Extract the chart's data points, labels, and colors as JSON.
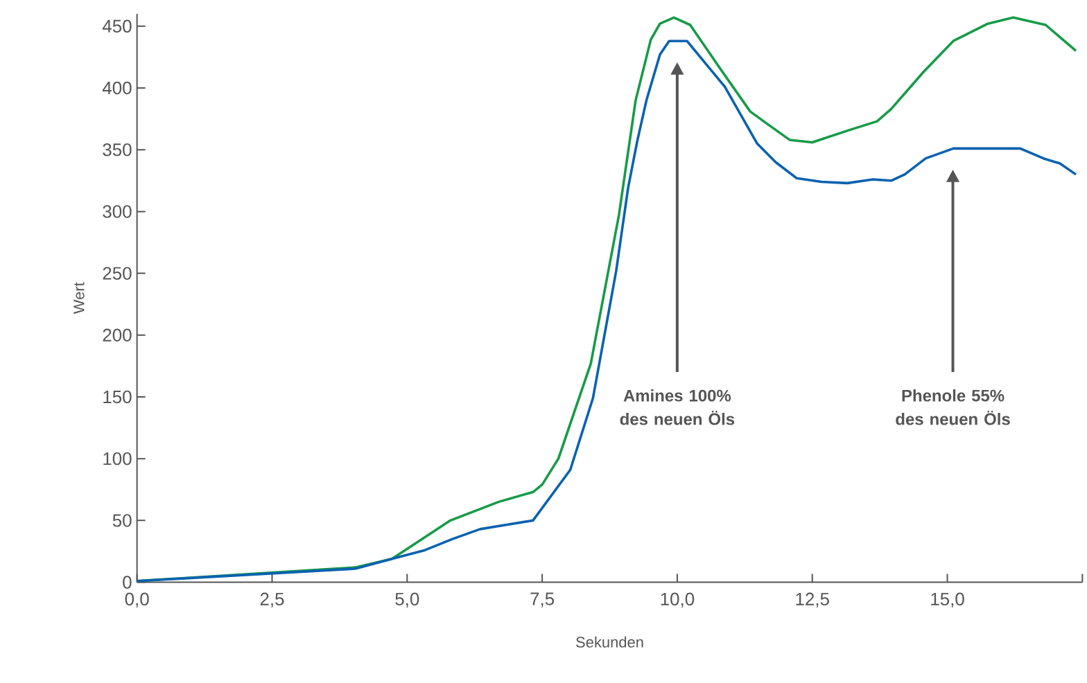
{
  "chart_data": {
    "type": "line",
    "xlabel": "Sekunden",
    "ylabel": "Wert",
    "xlim": [
      0,
      17.5
    ],
    "ylim": [
      0,
      460
    ],
    "xticks": [
      {
        "value": 0,
        "label": "0,0"
      },
      {
        "value": 2.5,
        "label": "2,5"
      },
      {
        "value": 5,
        "label": "5,0"
      },
      {
        "value": 7.5,
        "label": "7,5"
      },
      {
        "value": 10,
        "label": "10,0"
      },
      {
        "value": 12.5,
        "label": "12,5"
      },
      {
        "value": 15,
        "label": "15,0"
      },
      {
        "value": 17.5,
        "label": null
      }
    ],
    "yticks": [
      0,
      50,
      100,
      150,
      200,
      250,
      300,
      350,
      400,
      450
    ],
    "series": [
      {
        "color": "#169b48",
        "x": [
          0,
          4.04,
          4.72,
          5.8,
          6.69,
          7.33,
          7.5,
          7.8,
          8.4,
          8.92,
          9.23,
          9.51,
          9.68,
          9.94,
          10.24,
          10.79,
          11.35,
          11.6,
          12.08,
          12.5,
          13.19,
          13.7,
          13.96,
          14.56,
          15.11,
          15.75,
          16.22,
          16.82,
          17.38
        ],
        "values": [
          1,
          12,
          19,
          50,
          65,
          73,
          79,
          100,
          177,
          297,
          390,
          439,
          452,
          457,
          451,
          416,
          381,
          373,
          358,
          356,
          366,
          373,
          383,
          413,
          438,
          452,
          457,
          451,
          430
        ]
      },
      {
        "color": "#0a62b0",
        "x": [
          0,
          4.04,
          4.72,
          5.33,
          5.84,
          6.35,
          7.33,
          8.02,
          8.44,
          8.87,
          9.09,
          9.26,
          9.43,
          9.68,
          9.85,
          10.18,
          10.88,
          11.48,
          11.82,
          12.21,
          12.67,
          13.15,
          13.62,
          13.96,
          14.21,
          14.6,
          15.11,
          16.35,
          16.78,
          17.08,
          17.38
        ],
        "values": [
          1,
          11,
          19,
          26,
          35,
          43,
          50,
          91,
          149,
          252,
          319,
          357,
          390,
          427,
          438,
          438,
          401,
          355,
          340,
          327,
          324,
          323,
          326,
          325,
          330,
          343,
          351,
          351,
          343,
          339,
          330
        ]
      }
    ],
    "annotations": [
      "Amines 100% des neuen Öls",
      "Phenole 55% des neuen Öls"
    ]
  }
}
